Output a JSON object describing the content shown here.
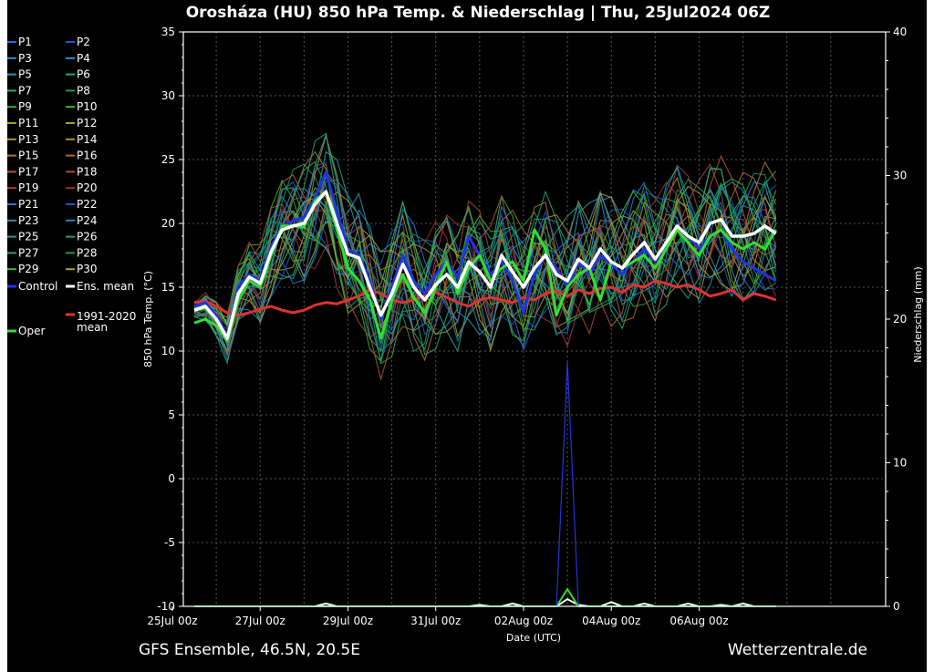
{
  "chart_data": {
    "type": "line",
    "title": "Orosháza  (HU)  850 hPa Temp. & Niederschlag | Thu, 25Jul2024 06Z",
    "xlabel": "Date (UTC)",
    "ylabel": "850 hPa Temp. (°C)",
    "y2label": "Niederschlag (mm)",
    "ylim": [
      -10,
      35
    ],
    "y2lim": [
      0,
      40
    ],
    "yticks": [
      -10,
      -5,
      0,
      5,
      10,
      15,
      20,
      25,
      30,
      35
    ],
    "y2ticks": [
      0,
      10,
      20,
      30,
      40
    ],
    "xlim_hours": [
      0,
      384
    ],
    "x_step_hours": 6,
    "xticks": [
      {
        "label": "25Jul 00z",
        "hour": -6
      },
      {
        "label": "27Jul 00z",
        "hour": 42
      },
      {
        "label": "29Jul 00z",
        "hour": 90
      },
      {
        "label": "31Jul 00z",
        "hour": 138
      },
      {
        "label": "02Aug 00z",
        "hour": 186
      },
      {
        "label": "04Aug 00z",
        "hour": 234
      },
      {
        "label": "06Aug 00z",
        "hour": 282
      }
    ],
    "footer_left": "GFS Ensemble, 46.5N, 20.5E",
    "footer_right": "Wetterzentrale.de",
    "series": [
      {
        "name": "Ens. mean",
        "color": "#ffffff",
        "values": [
          13.2,
          13.5,
          12.5,
          11.0,
          14.5,
          15.8,
          15.3,
          17.8,
          19.5,
          19.8,
          20.0,
          21.5,
          22.5,
          20.0,
          17.6,
          17.3,
          15.0,
          12.8,
          14.5,
          16.8,
          15.0,
          14.0,
          15.2,
          16.0,
          15.0,
          17.0,
          16.2,
          15.0,
          17.5,
          16.2,
          15.0,
          16.5,
          17.5,
          16.0,
          15.5,
          17.2,
          16.5,
          18.0,
          17.0,
          16.5,
          17.6,
          18.5,
          17.2,
          18.5,
          19.8,
          19.0,
          18.5,
          20.0,
          20.3,
          19.0,
          19.0,
          19.2,
          19.8,
          19.2
        ]
      },
      {
        "name": "Control",
        "color": "#2233dd",
        "values": [
          13.5,
          13.8,
          12.8,
          11.2,
          15.0,
          16.0,
          15.5,
          18.2,
          19.8,
          20.2,
          20.5,
          22.0,
          24.0,
          21.0,
          18.0,
          17.5,
          15.5,
          12.5,
          15.0,
          17.5,
          15.5,
          14.5,
          16.0,
          17.0,
          15.8,
          19.0,
          17.5,
          16.0,
          17.0,
          15.5,
          13.0,
          16.0,
          17.5,
          16.5,
          15.0,
          17.0,
          16.0,
          17.5,
          16.8,
          16.0,
          17.0,
          18.0,
          17.0,
          18.5,
          19.5,
          19.0,
          18.0,
          19.0,
          19.5,
          18.0,
          17.0,
          16.5,
          16.0,
          15.5
        ]
      },
      {
        "name": "Oper",
        "color": "#33dd33",
        "values": [
          12.2,
          12.5,
          12.0,
          10.8,
          14.0,
          15.5,
          15.0,
          17.5,
          19.8,
          19.8,
          19.7,
          21.8,
          22.5,
          19.5,
          16.5,
          15.5,
          14.0,
          11.0,
          14.0,
          16.0,
          14.2,
          13.0,
          15.0,
          17.0,
          14.5,
          16.5,
          17.5,
          15.5,
          16.5,
          17.0,
          15.5,
          19.5,
          18.0,
          12.8,
          15.0,
          16.0,
          16.5,
          14.0,
          17.0,
          16.5,
          17.0,
          17.5,
          16.5,
          18.0,
          19.5,
          18.5,
          17.5,
          19.0,
          19.5,
          18.5,
          18.0,
          18.5,
          18.0,
          19.5
        ]
      },
      {
        "name": "1991-2020 mean",
        "color": "#dd3333",
        "values": [
          13.8,
          13.9,
          13.5,
          13.0,
          12.8,
          13.0,
          13.3,
          13.5,
          13.2,
          13.0,
          13.2,
          13.6,
          13.8,
          13.7,
          14.0,
          14.3,
          14.8,
          14.5,
          14.0,
          13.8,
          14.0,
          14.3,
          14.6,
          14.2,
          13.8,
          13.5,
          14.0,
          14.2,
          14.0,
          13.8,
          14.2,
          14.0,
          14.5,
          14.7,
          14.3,
          14.8,
          14.5,
          14.9,
          15.0,
          14.6,
          15.2,
          15.0,
          15.5,
          15.3,
          15.0,
          15.2,
          14.8,
          14.3,
          14.5,
          14.8,
          14.0,
          14.5,
          14.3,
          14.0
        ]
      }
    ],
    "precip_series": [
      {
        "name": "Ens. mean",
        "color": "#ffffff",
        "values_mm": [
          0,
          0,
          0,
          0,
          0,
          0,
          0,
          0,
          0,
          0,
          0,
          0,
          0.2,
          0,
          0,
          0,
          0,
          0,
          0,
          0,
          0,
          0,
          0,
          0,
          0,
          0,
          0.1,
          0,
          0,
          0.2,
          0,
          0,
          0,
          0,
          0.5,
          0.1,
          0,
          0,
          0.3,
          0,
          0,
          0.2,
          0,
          0,
          0,
          0.2,
          0,
          0,
          0.1,
          0,
          0.2,
          0,
          0,
          0
        ]
      },
      {
        "name": "Oper",
        "color": "#33dd33",
        "values_mm": [
          0,
          0,
          0,
          0,
          0,
          0,
          0,
          0,
          0,
          0,
          0,
          0,
          0,
          0,
          0,
          0,
          0,
          0,
          0,
          0,
          0,
          0,
          0,
          0,
          0,
          0,
          0,
          0,
          0,
          0,
          0,
          0,
          0,
          0,
          1.2,
          0,
          0,
          0,
          0,
          0,
          0,
          0,
          0,
          0,
          0,
          0,
          0,
          0,
          0,
          0,
          0,
          0,
          0,
          0
        ]
      },
      {
        "name": "P1",
        "color": "#2233dd",
        "values_mm": [
          0,
          0,
          0,
          0,
          0,
          0,
          0,
          0,
          0,
          0,
          0,
          0,
          0,
          0,
          0,
          0,
          0,
          0,
          0,
          0,
          0,
          0,
          0,
          0,
          0,
          0,
          0,
          0,
          0,
          0,
          0,
          0,
          0,
          0,
          17,
          0,
          0,
          0,
          0,
          0,
          0,
          0,
          0,
          0,
          0,
          0,
          0,
          0,
          0,
          0,
          0,
          0,
          0,
          0
        ]
      }
    ],
    "legend": {
      "placement": "left",
      "members": [
        "P1",
        "P2",
        "P3",
        "P4",
        "P5",
        "P6",
        "P7",
        "P8",
        "P9",
        "P10",
        "P11",
        "P12",
        "P13",
        "P14",
        "P15",
        "P16",
        "P17",
        "P18",
        "P19",
        "P20",
        "P21",
        "P22",
        "P23",
        "P24",
        "P25",
        "P26",
        "P27",
        "P28",
        "P29",
        "P30"
      ],
      "member_colors": [
        "#1f6ee0",
        "#1c5ad0",
        "#2a8ed8",
        "#1f98c8",
        "#1f9ab0",
        "#1fa898",
        "#22a878",
        "#1a9a5a",
        "#27b43a",
        "#3cb81f",
        "#88a82a",
        "#a0a030",
        "#a89a30",
        "#b09030",
        "#b07838",
        "#b06a38",
        "#b05a38",
        "#a84a38",
        "#a83a38",
        "#a03030",
        "#2a74d8",
        "#1c5ab8",
        "#2a8ec8",
        "#1f88b0",
        "#1fa090",
        "#20a070",
        "#22a868",
        "#1c9858",
        "#3ab828",
        "#a8a030"
      ],
      "control_label": "Control",
      "mean_label": "Ens. mean",
      "clim_label_1": "1991-2020",
      "clim_label_2": "mean",
      "oper_label": "Oper"
    }
  }
}
